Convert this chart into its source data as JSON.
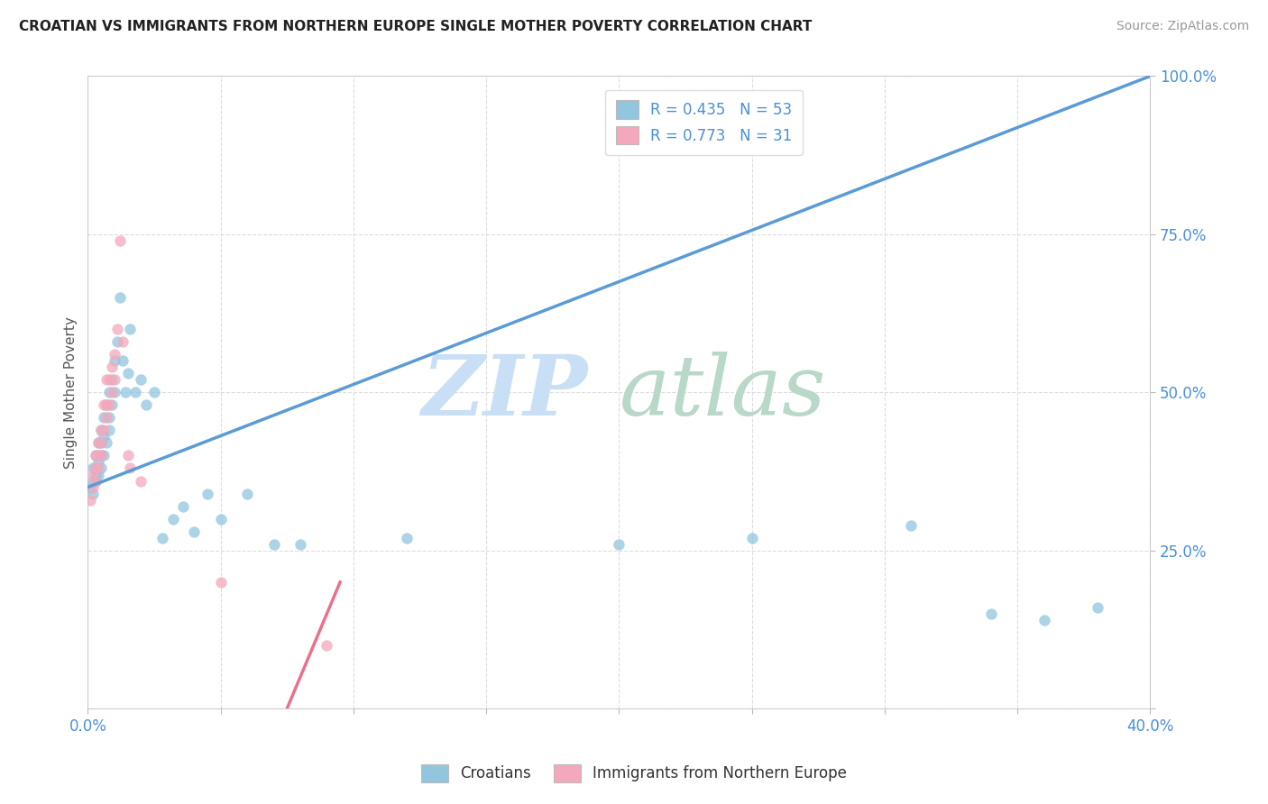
{
  "title": "CROATIAN VS IMMIGRANTS FROM NORTHERN EUROPE SINGLE MOTHER POVERTY CORRELATION CHART",
  "source": "Source: ZipAtlas.com",
  "ylabel": "Single Mother Poverty",
  "xlim": [
    0.0,
    0.4
  ],
  "ylim": [
    0.0,
    1.0
  ],
  "blue_color": "#92c5de",
  "pink_color": "#f4a8bc",
  "blue_line_color": "#5b9bd5",
  "pink_line_color": "#e8728a",
  "blue_r": "0.435",
  "blue_n": "53",
  "pink_r": "0.773",
  "pink_n": "31",
  "watermark_zip": "ZIP",
  "watermark_atlas": "atlas",
  "watermark_zip_color": "#c8dff5",
  "watermark_atlas_color": "#b8d8c8",
  "blue_x": [
    0.001,
    0.002,
    0.002,
    0.002,
    0.003,
    0.003,
    0.003,
    0.003,
    0.004,
    0.004,
    0.004,
    0.005,
    0.005,
    0.005,
    0.005,
    0.006,
    0.006,
    0.006,
    0.007,
    0.007,
    0.008,
    0.008,
    0.008,
    0.009,
    0.009,
    0.01,
    0.01,
    0.011,
    0.012,
    0.013,
    0.014,
    0.015,
    0.016,
    0.018,
    0.02,
    0.022,
    0.025,
    0.028,
    0.032,
    0.036,
    0.04,
    0.045,
    0.05,
    0.06,
    0.07,
    0.08,
    0.12,
    0.2,
    0.25,
    0.31,
    0.34,
    0.36,
    0.38
  ],
  "blue_y": [
    0.35,
    0.34,
    0.36,
    0.38,
    0.36,
    0.37,
    0.38,
    0.4,
    0.37,
    0.39,
    0.42,
    0.38,
    0.4,
    0.42,
    0.44,
    0.4,
    0.43,
    0.46,
    0.42,
    0.48,
    0.44,
    0.46,
    0.5,
    0.48,
    0.52,
    0.5,
    0.55,
    0.58,
    0.65,
    0.55,
    0.5,
    0.53,
    0.6,
    0.5,
    0.52,
    0.48,
    0.5,
    0.27,
    0.3,
    0.32,
    0.28,
    0.34,
    0.3,
    0.34,
    0.26,
    0.26,
    0.27,
    0.26,
    0.27,
    0.29,
    0.15,
    0.14,
    0.16
  ],
  "pink_x": [
    0.001,
    0.002,
    0.002,
    0.003,
    0.003,
    0.003,
    0.004,
    0.004,
    0.004,
    0.005,
    0.005,
    0.005,
    0.006,
    0.006,
    0.007,
    0.007,
    0.007,
    0.008,
    0.008,
    0.009,
    0.009,
    0.01,
    0.01,
    0.011,
    0.012,
    0.013,
    0.015,
    0.016,
    0.02,
    0.05,
    0.09
  ],
  "pink_y": [
    0.33,
    0.35,
    0.37,
    0.36,
    0.38,
    0.4,
    0.38,
    0.4,
    0.42,
    0.4,
    0.42,
    0.44,
    0.44,
    0.48,
    0.46,
    0.48,
    0.52,
    0.48,
    0.52,
    0.5,
    0.54,
    0.52,
    0.56,
    0.6,
    0.74,
    0.58,
    0.4,
    0.38,
    0.36,
    0.2,
    0.1
  ]
}
